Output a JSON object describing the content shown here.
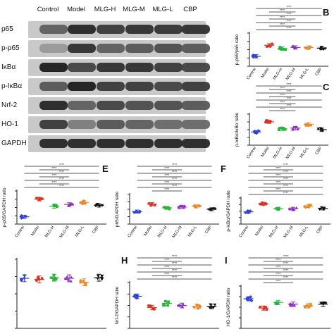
{
  "blot": {
    "columns": [
      "Control",
      "Model",
      "MLG-H",
      "MLG-M",
      "MLG-L",
      "CBP"
    ],
    "bands": [
      {
        "name": "p65",
        "intensity": [
          0.55,
          0.85,
          0.75,
          0.8,
          0.78,
          0.8
        ]
      },
      {
        "name": "p-p65",
        "intensity": [
          0.25,
          0.8,
          0.55,
          0.6,
          0.65,
          0.6
        ]
      },
      {
        "name": "IκBα",
        "intensity": [
          0.9,
          0.7,
          0.8,
          0.8,
          0.75,
          0.7
        ]
      },
      {
        "name": "p-IκBα",
        "intensity": [
          0.6,
          0.9,
          0.75,
          0.75,
          0.7,
          0.75
        ]
      },
      {
        "name": "Nrf-2",
        "intensity": [
          0.85,
          0.55,
          0.7,
          0.65,
          0.65,
          0.6
        ]
      },
      {
        "name": "HO-1",
        "intensity": [
          0.75,
          0.4,
          0.6,
          0.55,
          0.5,
          0.5
        ]
      },
      {
        "name": "GAPDH",
        "intensity": [
          0.85,
          0.85,
          0.85,
          0.85,
          0.85,
          0.85
        ]
      }
    ]
  },
  "chart_data": [
    {
      "id": "B",
      "type": "scatter",
      "ylabel": "p-p65/p65 ratio",
      "categories": [
        "Control",
        "Model",
        "MLG-H",
        "MLG-M",
        "MLG-L",
        "CBP"
      ],
      "means": [
        0.45,
        0.95,
        0.8,
        0.85,
        0.85,
        0.82
      ],
      "ylim": [
        0,
        1.5
      ],
      "brackets": 7,
      "sig": "****"
    },
    {
      "id": "C",
      "type": "scatter",
      "ylabel": "p-IκBα/IκBα ratio",
      "categories": [
        "Control",
        "Model",
        "MLG-H",
        "MLG-M",
        "MLG-L",
        "CBP"
      ],
      "means": [
        0.85,
        1.5,
        1.05,
        1.1,
        1.35,
        1.0
      ],
      "ylim": [
        0,
        2.0
      ],
      "brackets": 8,
      "sig": "****"
    },
    {
      "id": "D",
      "type": "scatter",
      "ylabel": "p-p65/GAPDH ratio",
      "categories": [
        "Control",
        "Model",
        "MLG-H",
        "MLG-M",
        "MLG-L",
        "CBP"
      ],
      "means": [
        0.35,
        1.2,
        0.85,
        0.95,
        1.05,
        0.9
      ],
      "ylim": [
        0,
        1.6
      ],
      "brackets": 7,
      "sig": "****"
    },
    {
      "id": "E",
      "type": "scatter",
      "ylabel": "p65/GAPDH ratio",
      "categories": [
        "Control",
        "Model",
        "MLG-H",
        "MLG-M",
        "MLG-L",
        "CBP"
      ],
      "means": [
        0.85,
        1.35,
        1.1,
        1.15,
        1.2,
        1.0
      ],
      "ylim": [
        0,
        2.0
      ],
      "brackets": 8,
      "sig": "****"
    },
    {
      "id": "F",
      "type": "scatter",
      "ylabel": "p-IκBα/GAPDH ratio",
      "categories": [
        "Control",
        "Model",
        "MLG-H",
        "MLG-M",
        "MLG-L",
        "CBP"
      ],
      "means": [
        0.75,
        1.25,
        0.95,
        0.95,
        1.1,
        0.95
      ],
      "ylim": [
        0,
        1.6
      ],
      "brackets": 9,
      "sig": "****"
    },
    {
      "id": "G",
      "type": "scatter",
      "ylabel": "",
      "categories": [
        "Control",
        "Model",
        "MLG-H",
        "MLG-M",
        "MLG-L",
        "CBP"
      ],
      "means": [
        0.87,
        0.85,
        0.88,
        0.87,
        0.8,
        0.88
      ],
      "ylim": [
        0,
        1.2
      ],
      "brackets": 0,
      "sig": ""
    },
    {
      "id": "H",
      "type": "scatter",
      "ylabel": "Nrf-2/GAPDH ratio",
      "categories": [
        "Control",
        "Model",
        "MLG-H",
        "MLG-M",
        "MLG-L",
        "CBP"
      ],
      "means": [
        1.05,
        0.68,
        0.82,
        0.75,
        0.72,
        0.72
      ],
      "ylim": [
        0,
        1.5
      ],
      "brackets": 7,
      "sig": "****"
    },
    {
      "id": "I",
      "type": "scatter",
      "ylabel": "HO-1/GAPDH ratio",
      "categories": [
        "Control",
        "Model",
        "MLG-H",
        "MLG-M",
        "MLG-L",
        "CBP"
      ],
      "means": [
        1.05,
        0.72,
        0.92,
        0.86,
        0.8,
        0.86
      ],
      "ylim": [
        0,
        1.5
      ],
      "brackets": 8,
      "sig": "****"
    }
  ],
  "colors": {
    "Control": "#2f43d6",
    "Model": "#e0311f",
    "MLG-H": "#27b53b",
    "MLG-M": "#8a2fc0",
    "MLG-L": "#e98a2b",
    "CBP": "#111111"
  }
}
